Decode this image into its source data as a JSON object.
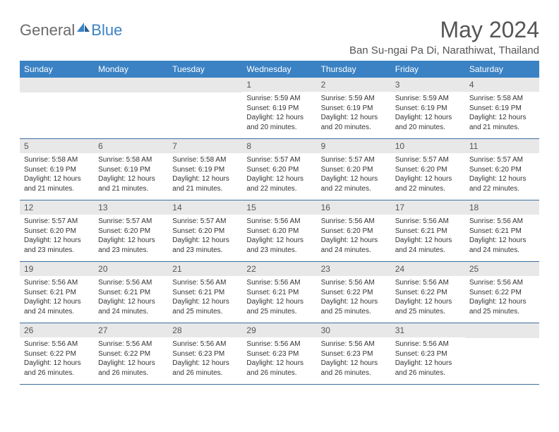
{
  "logo": {
    "general": "General",
    "blue": "Blue"
  },
  "title": "May 2024",
  "location": "Ban Su-ngai Pa Di, Narathiwat, Thailand",
  "weekdays": [
    "Sunday",
    "Monday",
    "Tuesday",
    "Wednesday",
    "Thursday",
    "Friday",
    "Saturday"
  ],
  "colors": {
    "header_bg": "#3b82c4",
    "header_text": "#ffffff",
    "daynum_bg": "#e8e8e8",
    "text": "#333333",
    "border": "#3b6fa0"
  },
  "weeks": [
    [
      null,
      null,
      null,
      {
        "n": "1",
        "sr": "5:59 AM",
        "ss": "6:19 PM",
        "dl": "12 hours and 20 minutes."
      },
      {
        "n": "2",
        "sr": "5:59 AM",
        "ss": "6:19 PM",
        "dl": "12 hours and 20 minutes."
      },
      {
        "n": "3",
        "sr": "5:59 AM",
        "ss": "6:19 PM",
        "dl": "12 hours and 20 minutes."
      },
      {
        "n": "4",
        "sr": "5:58 AM",
        "ss": "6:19 PM",
        "dl": "12 hours and 21 minutes."
      }
    ],
    [
      {
        "n": "5",
        "sr": "5:58 AM",
        "ss": "6:19 PM",
        "dl": "12 hours and 21 minutes."
      },
      {
        "n": "6",
        "sr": "5:58 AM",
        "ss": "6:19 PM",
        "dl": "12 hours and 21 minutes."
      },
      {
        "n": "7",
        "sr": "5:58 AM",
        "ss": "6:19 PM",
        "dl": "12 hours and 21 minutes."
      },
      {
        "n": "8",
        "sr": "5:57 AM",
        "ss": "6:20 PM",
        "dl": "12 hours and 22 minutes."
      },
      {
        "n": "9",
        "sr": "5:57 AM",
        "ss": "6:20 PM",
        "dl": "12 hours and 22 minutes."
      },
      {
        "n": "10",
        "sr": "5:57 AM",
        "ss": "6:20 PM",
        "dl": "12 hours and 22 minutes."
      },
      {
        "n": "11",
        "sr": "5:57 AM",
        "ss": "6:20 PM",
        "dl": "12 hours and 22 minutes."
      }
    ],
    [
      {
        "n": "12",
        "sr": "5:57 AM",
        "ss": "6:20 PM",
        "dl": "12 hours and 23 minutes."
      },
      {
        "n": "13",
        "sr": "5:57 AM",
        "ss": "6:20 PM",
        "dl": "12 hours and 23 minutes."
      },
      {
        "n": "14",
        "sr": "5:57 AM",
        "ss": "6:20 PM",
        "dl": "12 hours and 23 minutes."
      },
      {
        "n": "15",
        "sr": "5:56 AM",
        "ss": "6:20 PM",
        "dl": "12 hours and 23 minutes."
      },
      {
        "n": "16",
        "sr": "5:56 AM",
        "ss": "6:20 PM",
        "dl": "12 hours and 24 minutes."
      },
      {
        "n": "17",
        "sr": "5:56 AM",
        "ss": "6:21 PM",
        "dl": "12 hours and 24 minutes."
      },
      {
        "n": "18",
        "sr": "5:56 AM",
        "ss": "6:21 PM",
        "dl": "12 hours and 24 minutes."
      }
    ],
    [
      {
        "n": "19",
        "sr": "5:56 AM",
        "ss": "6:21 PM",
        "dl": "12 hours and 24 minutes."
      },
      {
        "n": "20",
        "sr": "5:56 AM",
        "ss": "6:21 PM",
        "dl": "12 hours and 24 minutes."
      },
      {
        "n": "21",
        "sr": "5:56 AM",
        "ss": "6:21 PM",
        "dl": "12 hours and 25 minutes."
      },
      {
        "n": "22",
        "sr": "5:56 AM",
        "ss": "6:21 PM",
        "dl": "12 hours and 25 minutes."
      },
      {
        "n": "23",
        "sr": "5:56 AM",
        "ss": "6:22 PM",
        "dl": "12 hours and 25 minutes."
      },
      {
        "n": "24",
        "sr": "5:56 AM",
        "ss": "6:22 PM",
        "dl": "12 hours and 25 minutes."
      },
      {
        "n": "25",
        "sr": "5:56 AM",
        "ss": "6:22 PM",
        "dl": "12 hours and 25 minutes."
      }
    ],
    [
      {
        "n": "26",
        "sr": "5:56 AM",
        "ss": "6:22 PM",
        "dl": "12 hours and 26 minutes."
      },
      {
        "n": "27",
        "sr": "5:56 AM",
        "ss": "6:22 PM",
        "dl": "12 hours and 26 minutes."
      },
      {
        "n": "28",
        "sr": "5:56 AM",
        "ss": "6:23 PM",
        "dl": "12 hours and 26 minutes."
      },
      {
        "n": "29",
        "sr": "5:56 AM",
        "ss": "6:23 PM",
        "dl": "12 hours and 26 minutes."
      },
      {
        "n": "30",
        "sr": "5:56 AM",
        "ss": "6:23 PM",
        "dl": "12 hours and 26 minutes."
      },
      {
        "n": "31",
        "sr": "5:56 AM",
        "ss": "6:23 PM",
        "dl": "12 hours and 26 minutes."
      },
      null
    ]
  ],
  "labels": {
    "sunrise": "Sunrise:",
    "sunset": "Sunset:",
    "daylight": "Daylight:"
  }
}
